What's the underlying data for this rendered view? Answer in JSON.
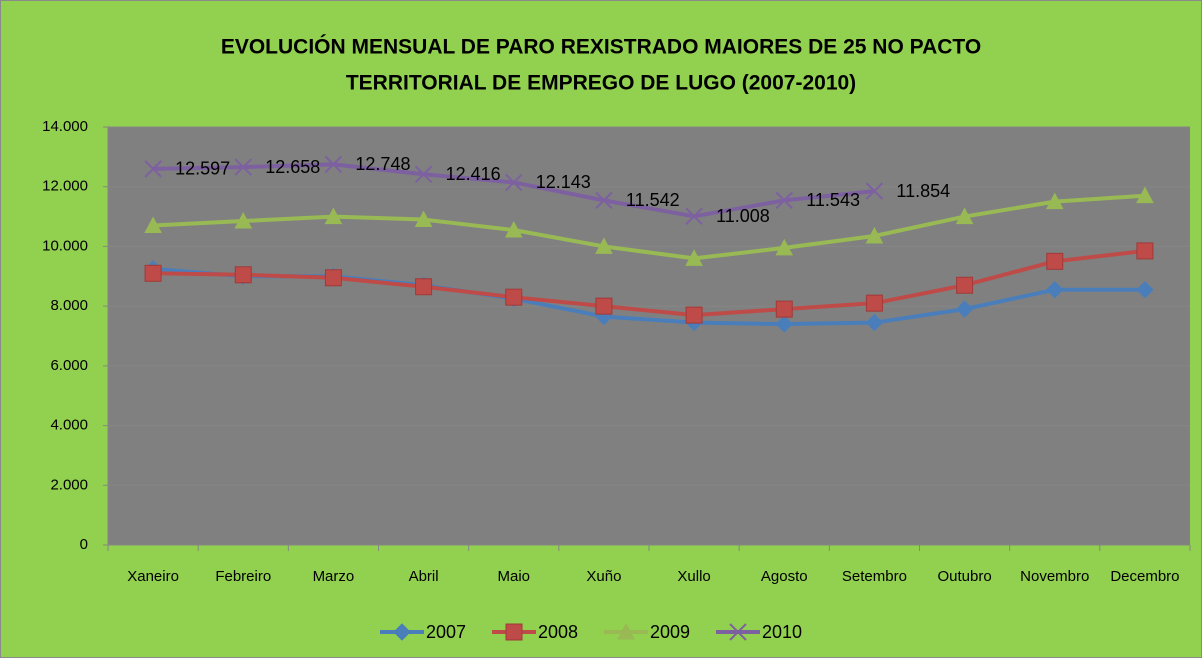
{
  "chart_data": {
    "type": "line",
    "title": [
      "EVOLUCIÓN MENSUAL DE PARO REXISTRADO MAIORES DE 25 NO PACTO",
      "TERRITORIAL DE EMPREGO DE LUGO (2007-2010)"
    ],
    "categories": [
      "Xaneiro",
      "Febreiro",
      "Marzo",
      "Abril",
      "Maio",
      "Xuño",
      "Xullo",
      "Agosto",
      "Setembro",
      "Outubro",
      "Novembro",
      "Decembro"
    ],
    "series": [
      {
        "name": "2007",
        "color": "#4a7ebb",
        "marker": "diamond",
        "values": [
          9250,
          9000,
          9000,
          8700,
          8250,
          7650,
          7450,
          7400,
          7450,
          7900,
          8550,
          8550
        ]
      },
      {
        "name": "2008",
        "color": "#be4b48",
        "marker": "square",
        "values": [
          9100,
          9050,
          8950,
          8650,
          8300,
          8000,
          7700,
          7900,
          8100,
          8700,
          9500,
          9850
        ]
      },
      {
        "name": "2009",
        "color": "#98b954",
        "marker": "triangle",
        "values": [
          10700,
          10850,
          11000,
          10900,
          10550,
          10000,
          9600,
          9950,
          10350,
          11000,
          11500,
          11700
        ]
      },
      {
        "name": "2010",
        "color": "#7d60a0",
        "marker": "x",
        "values": [
          12597,
          12658,
          12748,
          12416,
          12143,
          11542,
          11008,
          11543,
          11854,
          null,
          null,
          null
        ],
        "value_labels": [
          "12.597",
          "12.658",
          "12.748",
          "12.416",
          "12.143",
          "11.542",
          "11.008",
          "11.543",
          "11.854",
          null,
          null,
          null
        ]
      }
    ],
    "ylim": [
      0,
      14000
    ],
    "yticks": [
      0,
      {
        "value": 2000,
        "label": "2.000"
      },
      {
        "value": 4000,
        "label": "4.000"
      },
      {
        "value": 6000,
        "label": "6.000"
      },
      {
        "value": 8000,
        "label": "8.000"
      },
      {
        "value": 10000,
        "label": "10.000"
      },
      {
        "value": 12000,
        "label": "12.000"
      },
      {
        "value": 14000,
        "label": "14.000"
      }
    ],
    "grid": true,
    "legend": "bottom"
  }
}
